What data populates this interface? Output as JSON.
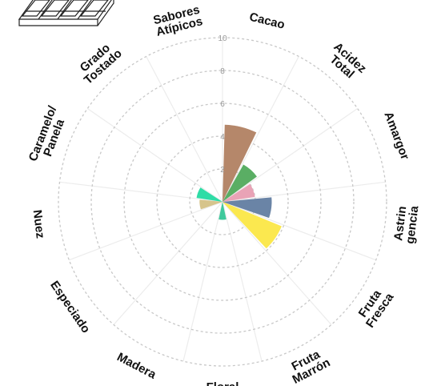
{
  "chart_data": {
    "type": "polar-bar",
    "title": "",
    "radial_axis": {
      "min": 0,
      "max": 10,
      "ticks": [
        "2",
        "4",
        "6",
        "8",
        "10"
      ]
    },
    "grid": true,
    "categories": [
      {
        "label": [
          "Cacao"
        ],
        "value": 4.7,
        "color": "#b5876a"
      },
      {
        "label": [
          "Acidez",
          "Total"
        ],
        "value": 2.6,
        "color": "#5aae64"
      },
      {
        "label": [
          "Amargor"
        ],
        "value": 2.0,
        "color": "#e9a3b6"
      },
      {
        "label": [
          "Astrin",
          "gencia"
        ],
        "value": 3.0,
        "color": "#6a84a6"
      },
      {
        "label": [
          "Fruta",
          "Fresca"
        ],
        "value": 3.9,
        "color": "#fbe84f"
      },
      {
        "label": [
          "Fruta",
          "Marrón"
        ],
        "value": 0,
        "color": "#9ec9a0"
      },
      {
        "label": [
          "Floral"
        ],
        "value": 1.1,
        "color": "#3ec99c"
      },
      {
        "label": [
          "Madera"
        ],
        "value": 0,
        "color": "#c59a6a"
      },
      {
        "label": [
          "Especiado"
        ],
        "value": 0,
        "color": "#d7b47a"
      },
      {
        "label": [
          "Nuez"
        ],
        "value": 1.4,
        "color": "#d6c48c"
      },
      {
        "label": [
          "Caramelo/",
          "Panela"
        ],
        "value": 1.6,
        "color": "#2fdca6"
      },
      {
        "label": [
          "Grado",
          "Tostado"
        ],
        "value": 0,
        "color": "#d89a9a"
      },
      {
        "label": [
          "Sabores",
          "Atípicos"
        ],
        "value": 0,
        "color": "#bfbfbf"
      }
    ]
  },
  "logo": {
    "icon": "chocolate-bar-icon"
  }
}
